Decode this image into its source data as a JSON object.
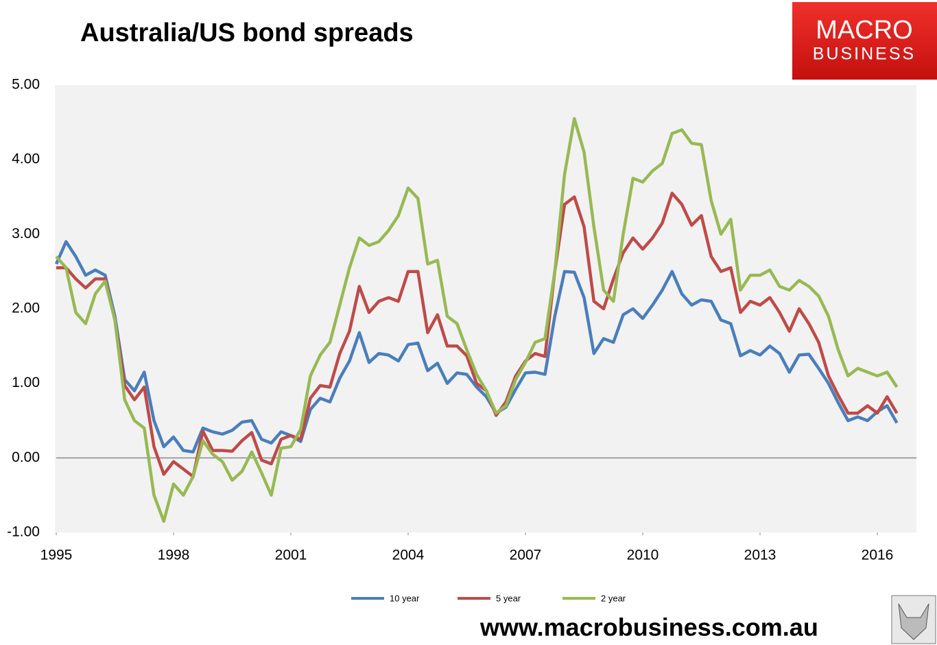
{
  "logo": {
    "line1": "MACRO",
    "line2": "BUSINESS"
  },
  "footer_url": "www.macrobusiness.com.au",
  "chart_data": {
    "type": "line",
    "title": "Australia/US bond spreads",
    "x": [
      1995,
      1995.25,
      1995.5,
      1995.75,
      1996,
      1996.25,
      1996.5,
      1996.75,
      1997,
      1997.25,
      1997.5,
      1997.75,
      1998,
      1998.25,
      1998.5,
      1998.75,
      1999,
      1999.25,
      1999.5,
      1999.75,
      2000,
      2000.25,
      2000.5,
      2000.75,
      2001,
      2001.25,
      2001.5,
      2001.75,
      2002,
      2002.25,
      2002.5,
      2002.75,
      2003,
      2003.25,
      2003.5,
      2003.75,
      2004,
      2004.25,
      2004.5,
      2004.75,
      2005,
      2005.25,
      2005.5,
      2005.75,
      2006,
      2006.25,
      2006.5,
      2006.75,
      2007,
      2007.25,
      2007.5,
      2007.75,
      2008,
      2008.25,
      2008.5,
      2008.75,
      2009,
      2009.25,
      2009.5,
      2009.75,
      2010,
      2010.25,
      2010.5,
      2010.75,
      2011,
      2011.25,
      2011.5,
      2011.75,
      2012,
      2012.25,
      2012.5,
      2012.75,
      2013,
      2013.25,
      2013.5,
      2013.75,
      2014,
      2014.25,
      2014.5,
      2014.75,
      2015,
      2015.25,
      2015.5,
      2015.75,
      2016,
      2016.25,
      2016.5
    ],
    "series": [
      {
        "name": "10 year",
        "color": "#4a7ebb",
        "values": [
          2.6,
          2.9,
          2.7,
          2.45,
          2.52,
          2.45,
          1.9,
          1.05,
          0.9,
          1.15,
          0.5,
          0.15,
          0.28,
          0.1,
          0.08,
          0.4,
          0.35,
          0.32,
          0.37,
          0.48,
          0.5,
          0.25,
          0.2,
          0.35,
          0.3,
          0.22,
          0.65,
          0.8,
          0.75,
          1.07,
          1.3,
          1.68,
          1.28,
          1.4,
          1.38,
          1.3,
          1.52,
          1.54,
          1.17,
          1.27,
          1.0,
          1.14,
          1.12,
          0.95,
          0.82,
          0.6,
          0.68,
          0.92,
          1.14,
          1.15,
          1.12,
          1.9,
          2.5,
          2.49,
          2.15,
          1.4,
          1.6,
          1.55,
          1.92,
          2.0,
          1.87,
          2.05,
          2.25,
          2.5,
          2.2,
          2.05,
          2.12,
          2.1,
          1.85,
          1.8,
          1.37,
          1.44,
          1.38,
          1.5,
          1.4,
          1.15,
          1.38,
          1.39,
          1.2,
          1.0,
          0.74,
          0.5,
          0.55,
          0.5,
          0.62,
          0.7,
          0.47
        ]
      },
      {
        "name": "5 year",
        "color": "#be4b48",
        "values": [
          2.55,
          2.55,
          2.4,
          2.28,
          2.4,
          2.4,
          1.85,
          0.97,
          0.78,
          0.95,
          0.15,
          -0.22,
          -0.05,
          -0.15,
          -0.25,
          0.36,
          0.1,
          0.1,
          0.09,
          0.23,
          0.34,
          -0.03,
          -0.08,
          0.25,
          0.3,
          0.25,
          0.8,
          0.97,
          0.95,
          1.4,
          1.7,
          2.3,
          1.95,
          2.1,
          2.15,
          2.1,
          2.5,
          2.5,
          1.68,
          1.92,
          1.5,
          1.5,
          1.37,
          1.0,
          0.9,
          0.57,
          0.75,
          1.1,
          1.3,
          1.4,
          1.36,
          2.5,
          3.4,
          3.5,
          3.1,
          2.1,
          2.0,
          2.4,
          2.75,
          2.95,
          2.8,
          2.95,
          3.15,
          3.55,
          3.4,
          3.12,
          3.25,
          2.7,
          2.5,
          2.55,
          1.95,
          2.1,
          2.05,
          2.15,
          1.95,
          1.7,
          2.0,
          1.8,
          1.55,
          1.1,
          0.84,
          0.6,
          0.6,
          0.7,
          0.6,
          0.82,
          0.6
        ]
      },
      {
        "name": "2 year",
        "color": "#98b954",
        "values": [
          2.7,
          2.55,
          1.95,
          1.8,
          2.2,
          2.37,
          1.85,
          0.78,
          0.5,
          0.4,
          -0.5,
          -0.85,
          -0.35,
          -0.5,
          -0.25,
          0.23,
          0.05,
          -0.05,
          -0.3,
          -0.18,
          0.08,
          -0.2,
          -0.5,
          0.13,
          0.15,
          0.38,
          1.1,
          1.38,
          1.55,
          2.05,
          2.55,
          2.95,
          2.85,
          2.9,
          3.05,
          3.25,
          3.62,
          3.48,
          2.6,
          2.65,
          1.9,
          1.8,
          1.45,
          1.12,
          0.9,
          0.6,
          0.7,
          1.05,
          1.28,
          1.55,
          1.6,
          2.5,
          3.8,
          4.55,
          4.1,
          3.1,
          2.25,
          2.1,
          3.0,
          3.75,
          3.7,
          3.85,
          3.95,
          4.35,
          4.4,
          4.22,
          4.2,
          3.45,
          3.0,
          3.2,
          2.25,
          2.45,
          2.45,
          2.52,
          2.3,
          2.25,
          2.38,
          2.3,
          2.17,
          1.9,
          1.45,
          1.1,
          1.2,
          1.15,
          1.1,
          1.15,
          0.95
        ]
      }
    ],
    "xlim": [
      1995,
      2017
    ],
    "xticks": [
      1995,
      1998,
      2001,
      2004,
      2007,
      2010,
      2013,
      2016
    ],
    "ylim": [
      -1,
      5
    ],
    "yticks": [
      {
        "value": -1,
        "label": "-1.00"
      },
      {
        "value": 0,
        "label": "0.00"
      },
      {
        "value": 1,
        "label": "1.00"
      },
      {
        "value": 2,
        "label": "2.00"
      },
      {
        "value": 3,
        "label": "3.00"
      },
      {
        "value": 4,
        "label": "4.00"
      },
      {
        "value": 5,
        "label": "5.00"
      }
    ],
    "legend": "bottom",
    "background": "#f2f2f2"
  }
}
